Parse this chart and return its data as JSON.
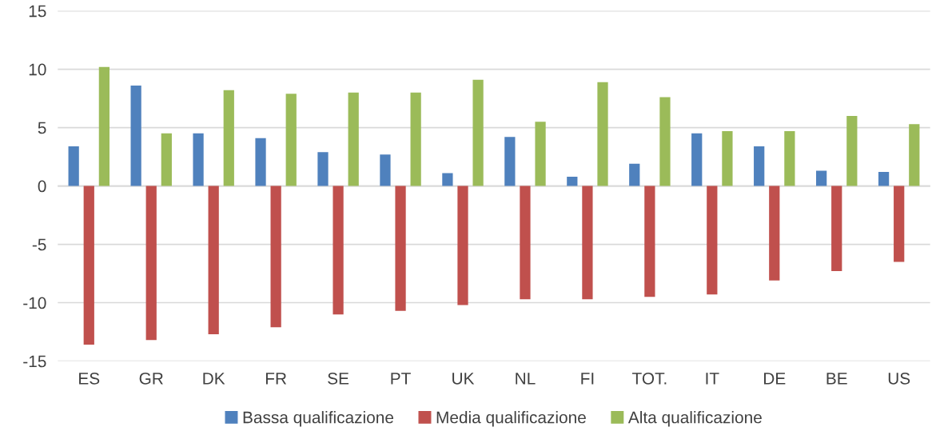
{
  "chart_data": {
    "type": "bar",
    "categories": [
      "ES",
      "GR",
      "DK",
      "FR",
      "SE",
      "PT",
      "UK",
      "NL",
      "FI",
      "TOT.",
      "IT",
      "DE",
      "BE",
      "US"
    ],
    "series": [
      {
        "name": "Bassa qualificazione",
        "color": "#4f81bd",
        "values": [
          3.4,
          8.6,
          4.5,
          4.1,
          2.9,
          2.7,
          1.1,
          4.2,
          0.8,
          1.9,
          4.5,
          3.4,
          1.3,
          1.2
        ]
      },
      {
        "name": "Media qualificazione",
        "color": "#c0504d",
        "values": [
          -13.6,
          -13.2,
          -12.7,
          -12.1,
          -11.0,
          -10.7,
          -10.2,
          -9.7,
          -9.7,
          -9.5,
          -9.3,
          -8.1,
          -7.3,
          -6.5
        ]
      },
      {
        "name": "Alta qualificazione",
        "color": "#9bbb59",
        "values": [
          10.2,
          4.5,
          8.2,
          7.9,
          8.0,
          8.0,
          9.1,
          5.5,
          8.9,
          7.6,
          4.7,
          4.7,
          6.0,
          5.3
        ]
      }
    ],
    "ylim": [
      -15,
      15
    ],
    "yticks": [
      -15,
      -10,
      -5,
      0,
      5,
      10,
      15
    ],
    "grid": "y",
    "legend": "bottom"
  }
}
